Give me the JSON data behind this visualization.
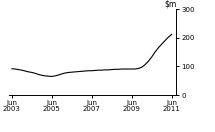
{
  "title": "",
  "ylim": [
    0,
    300
  ],
  "yticks": [
    0,
    100,
    200,
    300
  ],
  "xlim": [
    2003.25,
    2011.65
  ],
  "xtick_positions": [
    2003.417,
    2005.417,
    2007.417,
    2009.417,
    2011.417
  ],
  "xtick_labels": [
    "Jun\n2003",
    "Jun\n2005",
    "Jun\n2007",
    "Jun\n2009",
    "Jun\n2011"
  ],
  "line_color": "#000000",
  "line_width": 0.8,
  "background_color": "#ffffff",
  "x": [
    2003.417,
    2003.58,
    2003.75,
    2003.917,
    2004.08,
    2004.25,
    2004.417,
    2004.58,
    2004.75,
    2004.917,
    2005.08,
    2005.25,
    2005.417,
    2005.58,
    2005.75,
    2005.917,
    2006.08,
    2006.25,
    2006.417,
    2006.58,
    2006.75,
    2006.917,
    2007.08,
    2007.25,
    2007.417,
    2007.58,
    2007.75,
    2007.917,
    2008.08,
    2008.25,
    2008.417,
    2008.58,
    2008.75,
    2008.917,
    2009.08,
    2009.25,
    2009.417,
    2009.58,
    2009.75,
    2009.917,
    2010.08,
    2010.25,
    2010.417,
    2010.58,
    2010.75,
    2010.917,
    2011.08,
    2011.25,
    2011.417
  ],
  "y": [
    92,
    91,
    89,
    87,
    84,
    81,
    79,
    76,
    72,
    69,
    67,
    66,
    65,
    67,
    70,
    74,
    77,
    79,
    80,
    81,
    82,
    83,
    84,
    85,
    85,
    86,
    87,
    87,
    88,
    88,
    89,
    90,
    90,
    91,
    91,
    91,
    91,
    91,
    93,
    97,
    106,
    118,
    133,
    150,
    165,
    178,
    190,
    202,
    212
  ]
}
